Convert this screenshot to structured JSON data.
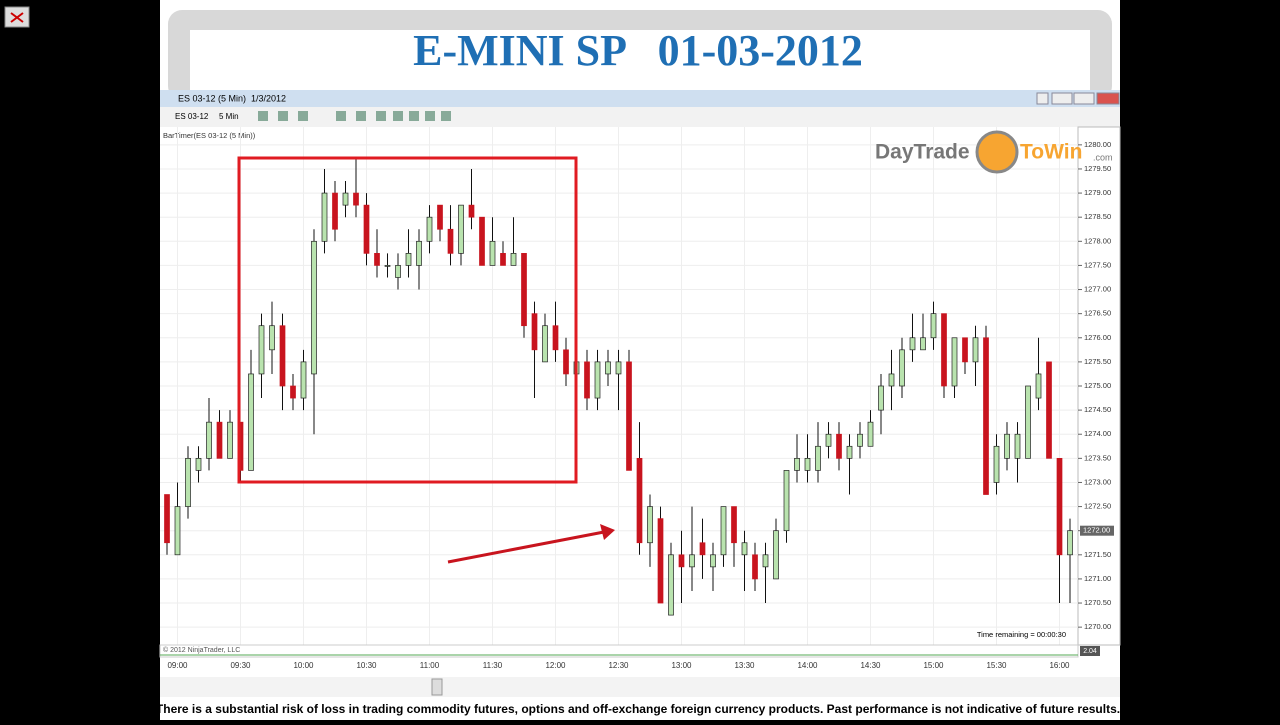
{
  "chart_data": {
    "type": "candlestick",
    "title": "E-MINI SP   01-03-2012",
    "categories": [
      null,
      "09:00",
      null,
      null,
      null,
      null,
      null,
      "09:30",
      null,
      null,
      null,
      null,
      null,
      "10:00",
      null,
      null,
      null,
      null,
      null,
      "10:30",
      null,
      null,
      null,
      null,
      null,
      "11:00",
      null,
      null,
      null,
      null,
      null,
      "11:30",
      null,
      null,
      null,
      null,
      null,
      "12:00",
      null,
      null,
      null,
      null,
      null,
      "12:30",
      null,
      null,
      null,
      null,
      null,
      "13:00",
      null,
      null,
      null,
      null,
      null,
      "13:30",
      null,
      null,
      null,
      null,
      null,
      "14:00",
      null,
      null,
      null,
      null,
      null,
      "14:30",
      null,
      null,
      null,
      null,
      null,
      "15:00",
      null,
      null,
      null,
      null,
      null,
      "15:30",
      null,
      null,
      null,
      null,
      null,
      "16:00",
      null
    ],
    "open": [
      1272.75,
      1271.5,
      1272.5,
      1273.25,
      1273.5,
      1274.25,
      1273.5,
      1274.25,
      1273.25,
      1275.25,
      1275.75,
      1276.25,
      1275,
      1274.75,
      1275.25,
      1278,
      1279,
      1278.75,
      1279,
      1278.75,
      1277.75,
      1277.5,
      1277.25,
      1277.5,
      1277.5,
      1278,
      1278.75,
      1278.25,
      1277.75,
      1278.75,
      1278.5,
      1277.5,
      1277.75,
      1277.5,
      1277.75,
      1276.5,
      1275.5,
      1276.25,
      1275.75,
      1275.25,
      1275.5,
      1274.75,
      1275.25,
      1275.25,
      1275.5,
      1273.5,
      1271.75,
      1272.25,
      1270.25,
      1271.5,
      1271.25,
      1271.75,
      1271.25,
      1271.5,
      1272.5,
      1271.5,
      1271.5,
      1271.25,
      1271,
      1272,
      1273.25,
      1273.25,
      1273.25,
      1273.75,
      1274,
      1273.5,
      1273.75,
      1273.75,
      1274.5,
      1275,
      1275,
      1275.75,
      1275.75,
      1276,
      1276.5,
      1275,
      1276,
      1275.5,
      1276,
      1273,
      1273.5,
      1273.5,
      1273.5,
      1274.75,
      1275.5,
      1273.5,
      1271.5
    ],
    "high": [
      1272.75,
      1273,
      1273.75,
      1273.75,
      1274.75,
      1274.5,
      1274.5,
      1274.25,
      1275.75,
      1276.5,
      1276.75,
      1276.5,
      1275.25,
      1275.75,
      1278.25,
      1279.5,
      1279.25,
      1279.25,
      1279.75,
      1279,
      1278.25,
      1277.75,
      1277.75,
      1278.25,
      1278.25,
      1278.75,
      1278.75,
      1278.75,
      1278.75,
      1279.5,
      1278.5,
      1278.5,
      1278,
      1278.5,
      1277.75,
      1276.75,
      1276.5,
      1276.75,
      1276,
      1275.75,
      1275.75,
      1275.75,
      1275.75,
      1275.75,
      1275.75,
      1274.25,
      1272.75,
      1272.5,
      1271.75,
      1272,
      1272.5,
      1272.25,
      1271.75,
      1272.5,
      1272.5,
      1272,
      1271.75,
      1271.75,
      1272.25,
      1273.25,
      1274,
      1274,
      1274.25,
      1274.25,
      1274.25,
      1274,
      1274.25,
      1274.5,
      1275.25,
      1275.75,
      1276,
      1276.5,
      1276.5,
      1276.75,
      1276.5,
      1276,
      1276,
      1276.25,
      1276.25,
      1274,
      1274.25,
      1274.25,
      1275,
      1276,
      1275.5,
      1273.5,
      1272.25
    ],
    "low": [
      1271.5,
      1271.5,
      1272.25,
      1273,
      1273.25,
      1273.5,
      1273.5,
      1273,
      1273.25,
      1274.75,
      1275.25,
      1274.5,
      1274.5,
      1274.5,
      1274,
      1277.75,
      1278,
      1278.5,
      1278.5,
      1277.5,
      1277.25,
      1277.25,
      1277,
      1277.25,
      1277,
      1277.75,
      1278,
      1277.5,
      1277.5,
      1278.25,
      1277.5,
      1277.5,
      1277.5,
      1277.5,
      1276,
      1274.75,
      1275.5,
      1275.5,
      1275,
      1274.5,
      1274.5,
      1274.5,
      1275,
      1274.5,
      1273.25,
      1271.5,
      1271.25,
      1270.5,
      1270.25,
      1270.5,
      1270.75,
      1271,
      1270.75,
      1271.25,
      1271.25,
      1270.75,
      1270.75,
      1270.5,
      1271,
      1271.75,
      1273,
      1273,
      1273,
      1273.5,
      1273.25,
      1272.75,
      1273.5,
      1273.75,
      1274,
      1274.5,
      1274.75,
      1275.5,
      1275.75,
      1275.75,
      1274.75,
      1274.75,
      1275.25,
      1275,
      1272.75,
      1272.75,
      1273.25,
      1273,
      1273.5,
      1274.5,
      1273.5,
      1270.5,
      1270.5
    ],
    "close": [
      1271.75,
      1272.5,
      1273.5,
      1273.5,
      1274.25,
      1273.5,
      1274.25,
      1273.25,
      1275.25,
      1276.25,
      1276.25,
      1275,
      1274.75,
      1275.5,
      1278,
      1279,
      1278.25,
      1279,
      1278.75,
      1277.75,
      1277.5,
      1277.5,
      1277.5,
      1277.75,
      1278,
      1278.5,
      1278.25,
      1277.75,
      1278.75,
      1278.5,
      1277.5,
      1278,
      1277.5,
      1277.75,
      1276.25,
      1275.75,
      1276.25,
      1275.75,
      1275.25,
      1275.5,
      1274.75,
      1275.5,
      1275.5,
      1275.5,
      1273.25,
      1271.75,
      1272.5,
      1270.5,
      1271.5,
      1271.25,
      1271.5,
      1271.5,
      1271.5,
      1272.5,
      1271.75,
      1271.75,
      1271,
      1271.5,
      1272,
      1273.25,
      1273.5,
      1273.5,
      1273.75,
      1274,
      1273.5,
      1273.75,
      1274,
      1274.25,
      1275,
      1275.25,
      1275.75,
      1276,
      1276,
      1276.5,
      1275,
      1276,
      1275.5,
      1276,
      1272.75,
      1273.75,
      1274,
      1274,
      1275,
      1275.25,
      1273.5,
      1271.5,
      1272
    ],
    "up_color": "#b9e3ae",
    "down_color": "#c8141e",
    "ylim": [
      1269.63,
      1280.37
    ],
    "yticks": [
      {
        "value": 1270,
        "label": "1270.00"
      },
      {
        "value": 1270.5,
        "label": "1270.50"
      },
      {
        "value": 1271,
        "label": "1271.00"
      },
      {
        "value": 1271.5,
        "label": "1271.50"
      },
      {
        "value": 1272,
        "label": "1272.00"
      },
      {
        "value": 1272.5,
        "label": "1272.50"
      },
      {
        "value": 1273,
        "label": "1273.00"
      },
      {
        "value": 1273.5,
        "label": "1273.50"
      },
      {
        "value": 1274,
        "label": "1274.00"
      },
      {
        "value": 1274.5,
        "label": "1274.50"
      },
      {
        "value": 1275,
        "label": "1275.00"
      },
      {
        "value": 1275.5,
        "label": "1275.50"
      },
      {
        "value": 1276,
        "label": "1276.00"
      },
      {
        "value": 1276.5,
        "label": "1276.50"
      },
      {
        "value": 1277,
        "label": "1277.00"
      },
      {
        "value": 1277.5,
        "label": "1277.50"
      },
      {
        "value": 1278,
        "label": "1278.00"
      },
      {
        "value": 1278.5,
        "label": "1278.50"
      },
      {
        "value": 1279,
        "label": "1279.00"
      },
      {
        "value": 1279.5,
        "label": "1279.50"
      },
      {
        "value": 1280,
        "label": "1280.00"
      }
    ],
    "current_price": {
      "value": 1272,
      "label": "1272.00"
    },
    "grid": true
  },
  "ui": {
    "window_title": "ES 03-12 (5 Min)  1/3/2012",
    "instrument": "ES 03-12",
    "interval": "5 Min",
    "indicator": "BarTimer(ES 03-12 (5 Min))",
    "copyright": "© 2012 NinjaTrader, LLC",
    "time_remaining": "Time remaining = 00:00:30",
    "indicator_value": "2.04",
    "logo_left": "DayTrade",
    "logo_right": "ToWin",
    "logo_suffix": ".com",
    "disclaimer": "There is a substantial risk of loss in trading commodity futures, options and off-exchange foreign currency products. Past performance is not indicative of future results."
  }
}
